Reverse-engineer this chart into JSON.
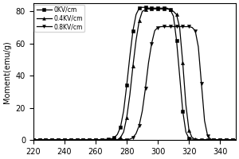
{
  "title": "",
  "xlabel": "",
  "ylabel": "Moment(emu/g)",
  "xlim": [
    220,
    350
  ],
  "ylim": [
    0,
    85
  ],
  "xticks": [
    220,
    240,
    260,
    280,
    300,
    320,
    340
  ],
  "yticks": [
    0,
    20,
    40,
    60,
    80
  ],
  "series": [
    {
      "label": "0KV/cm",
      "marker": "s",
      "color": "black",
      "x": [
        220,
        222,
        224,
        226,
        228,
        230,
        232,
        234,
        236,
        238,
        240,
        242,
        244,
        246,
        248,
        250,
        252,
        254,
        256,
        258,
        260,
        262,
        264,
        266,
        268,
        270,
        272,
        274,
        276,
        278,
        280,
        282,
        284,
        286,
        288,
        290,
        292,
        294,
        296,
        298,
        300,
        302,
        304,
        306,
        308,
        310,
        312,
        314,
        316,
        318,
        320,
        322,
        324,
        326,
        328,
        330,
        332,
        334,
        336,
        338,
        340,
        342,
        344,
        346,
        348,
        350
      ],
      "y": [
        0.2,
        0.2,
        0.2,
        0.2,
        0.2,
        0.2,
        0.2,
        0.2,
        0.2,
        0.2,
        0.2,
        0.2,
        0.2,
        0.2,
        0.2,
        0.2,
        0.2,
        0.2,
        0.2,
        0.2,
        0.2,
        0.2,
        0.3,
        0.4,
        0.5,
        0.7,
        1.5,
        3.5,
        8.0,
        18.0,
        34.0,
        52.0,
        68.0,
        78.0,
        82.0,
        82.5,
        82.5,
        82.0,
        82.0,
        82.0,
        82.0,
        82.0,
        82.0,
        82.0,
        81.0,
        77.0,
        62.0,
        40.0,
        18.0,
        5.0,
        1.0,
        0.5,
        0.3,
        0.2,
        0.2,
        0.2,
        0.2,
        0.2,
        0.2,
        0.2,
        0.2,
        0.2,
        0.2,
        0.2,
        0.2,
        0.2
      ]
    },
    {
      "label": "0.4KV/cm",
      "marker": "^",
      "color": "black",
      "x": [
        220,
        222,
        224,
        226,
        228,
        230,
        232,
        234,
        236,
        238,
        240,
        242,
        244,
        246,
        248,
        250,
        252,
        254,
        256,
        258,
        260,
        262,
        264,
        266,
        268,
        270,
        272,
        274,
        276,
        278,
        280,
        282,
        284,
        286,
        288,
        290,
        292,
        294,
        296,
        298,
        300,
        302,
        304,
        306,
        308,
        310,
        312,
        314,
        316,
        318,
        320,
        322,
        324,
        326,
        328,
        330,
        332,
        334,
        336,
        338,
        340,
        342,
        344,
        346,
        348,
        350
      ],
      "y": [
        0.2,
        0.2,
        0.2,
        0.2,
        0.2,
        0.2,
        0.2,
        0.2,
        0.2,
        0.2,
        0.2,
        0.2,
        0.2,
        0.2,
        0.2,
        0.2,
        0.2,
        0.2,
        0.2,
        0.2,
        0.2,
        0.2,
        0.2,
        0.2,
        0.2,
        0.2,
        0.2,
        0.2,
        1.5,
        5.0,
        14.0,
        28.0,
        46.0,
        62.0,
        74.0,
        80.0,
        81.0,
        81.5,
        81.5,
        81.5,
        81.5,
        81.5,
        81.5,
        81.5,
        81.0,
        80.0,
        78.0,
        70.0,
        48.0,
        22.0,
        6.0,
        1.5,
        0.5,
        0.2,
        0.2,
        0.2,
        0.2,
        0.2,
        0.2,
        0.2,
        0.2,
        0.2,
        0.2,
        0.2,
        0.2,
        0.2
      ]
    },
    {
      "label": "0.8KV/cm",
      "marker": "v",
      "color": "black",
      "x": [
        220,
        222,
        224,
        226,
        228,
        230,
        232,
        234,
        236,
        238,
        240,
        242,
        244,
        246,
        248,
        250,
        252,
        254,
        256,
        258,
        260,
        262,
        264,
        266,
        268,
        270,
        272,
        274,
        276,
        278,
        280,
        282,
        284,
        286,
        288,
        290,
        292,
        294,
        296,
        298,
        300,
        302,
        304,
        306,
        308,
        310,
        312,
        314,
        316,
        318,
        320,
        322,
        324,
        326,
        328,
        330,
        332,
        334,
        336,
        338,
        340,
        342,
        344,
        346,
        348,
        350
      ],
      "y": [
        0.2,
        0.2,
        0.2,
        0.2,
        0.2,
        0.2,
        0.2,
        0.2,
        0.2,
        0.2,
        0.2,
        0.2,
        0.2,
        0.2,
        0.2,
        0.2,
        0.2,
        0.2,
        0.2,
        0.2,
        0.2,
        0.2,
        0.2,
        0.2,
        0.2,
        0.2,
        0.2,
        0.2,
        0.2,
        0.2,
        0.2,
        0.5,
        1.5,
        4.0,
        9.0,
        18.0,
        32.0,
        48.0,
        60.0,
        68.0,
        70.0,
        70.5,
        70.5,
        70.5,
        70.5,
        70.5,
        70.5,
        70.5,
        70.5,
        70.5,
        70.5,
        70.0,
        68.0,
        58.0,
        35.0,
        12.0,
        2.5,
        0.5,
        0.2,
        0.2,
        0.2,
        0.2,
        0.2,
        0.2,
        0.2,
        0.2
      ]
    }
  ],
  "background_color": "#ffffff",
  "markersize": 3,
  "linewidth": 0.9,
  "markevery": 2
}
